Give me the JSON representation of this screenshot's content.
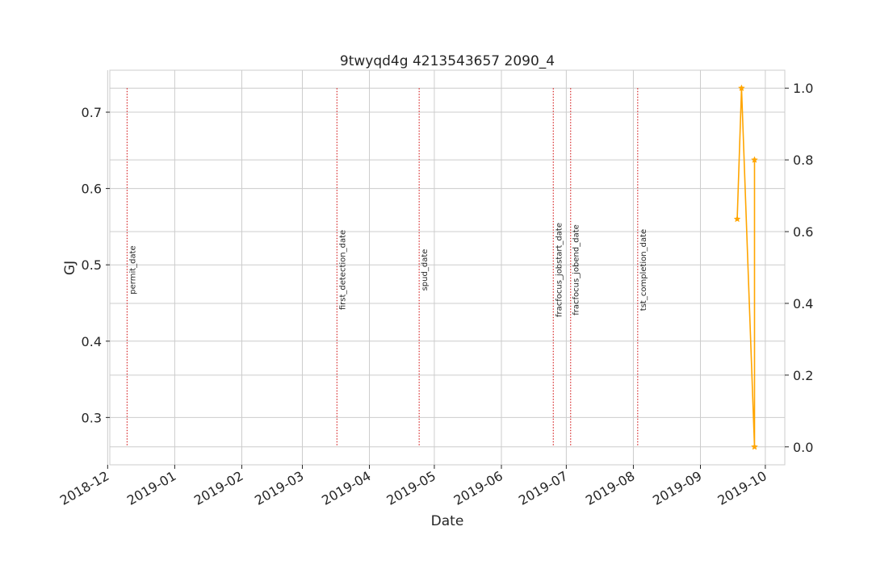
{
  "chart_data": {
    "type": "line",
    "title": "9twyqd4g 4213543657 2090_4",
    "xlabel": "Date",
    "ylabel_left": "GJ",
    "ylabel_left_color": "#1f77b4",
    "ylabel_right": "",
    "x_axis": {
      "type": "date",
      "range": [
        "2018-12-02",
        "2019-10-10"
      ],
      "tick_labels": [
        "2018-12",
        "2019-01",
        "2019-02",
        "2019-03",
        "2019-04",
        "2019-05",
        "2019-06",
        "2019-07",
        "2019-08",
        "2019-09",
        "2019-10"
      ],
      "tick_dates": [
        "2018-12-01",
        "2019-01-01",
        "2019-02-01",
        "2019-03-01",
        "2019-04-01",
        "2019-05-01",
        "2019-06-01",
        "2019-07-01",
        "2019-08-01",
        "2019-09-01",
        "2019-10-01"
      ]
    },
    "y_left": {
      "range": [
        0.238,
        0.755
      ],
      "tick_labels": [
        "0.3",
        "0.4",
        "0.5",
        "0.6",
        "0.7"
      ],
      "ticks": [
        0.3,
        0.4,
        0.5,
        0.6,
        0.7
      ]
    },
    "y_right": {
      "range": [
        -0.05,
        1.05
      ],
      "tick_labels": [
        "0.0",
        "0.2",
        "0.4",
        "0.6",
        "0.8",
        "1.0"
      ],
      "ticks": [
        0.0,
        0.2,
        0.4,
        0.6,
        0.8,
        1.0
      ]
    },
    "grid": true,
    "legend": "none",
    "series": [
      {
        "axis": "right",
        "color": "#ffa500",
        "marker": "star",
        "points": [
          {
            "x": "2019-09-18",
            "y": 0.635
          },
          {
            "x": "2019-09-20",
            "y": 1.0
          },
          {
            "x": "2019-09-26",
            "y": 0.0
          },
          {
            "x": "2019-09-26",
            "y": 0.8
          }
        ]
      }
    ],
    "event_lines": {
      "color": "#d62728",
      "style": "dotted",
      "events": [
        {
          "label": "permit_date",
          "x": "2018-12-10"
        },
        {
          "label": "first_detection_date",
          "x": "2019-03-17"
        },
        {
          "label": "spud_date",
          "x": "2019-04-24"
        },
        {
          "label": "fracfocus_jobstart_date",
          "x": "2019-06-25"
        },
        {
          "label": "fracfocus_jobend_date",
          "x": "2019-07-03"
        },
        {
          "label": "tst_completion_date",
          "x": "2019-08-03"
        }
      ]
    }
  }
}
